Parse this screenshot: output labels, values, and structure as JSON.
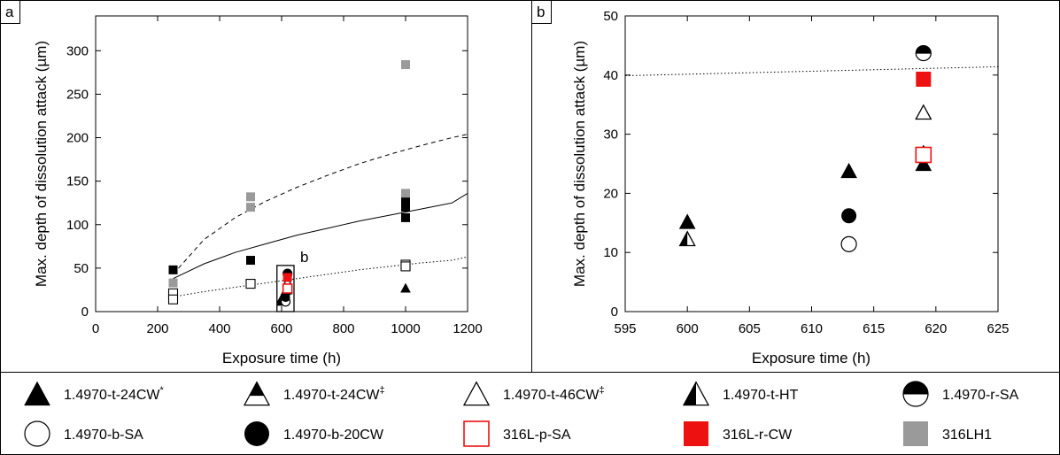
{
  "panels": {
    "a": {
      "letter": "a",
      "inset_label": "b"
    },
    "b": {
      "letter": "b"
    }
  },
  "legend": [
    {
      "label": "1.4970-t-24CW",
      "sup": "*",
      "marker": "triangle-filled"
    },
    {
      "label": "1.4970-t-24CW",
      "sup": "‡",
      "marker": "triangle-top-filled"
    },
    {
      "label": "1.4970-t-46CW",
      "sup": "‡",
      "marker": "triangle-open"
    },
    {
      "label": "1.4970-t-HT",
      "sup": "",
      "marker": "triangle-left-filled"
    },
    {
      "label": "1.4970-r-SA",
      "sup": "",
      "marker": "circle-top-filled"
    },
    {
      "label": "1.4970-b-SA",
      "sup": "",
      "marker": "circle-open"
    },
    {
      "label": "1.4970-b-20CW",
      "sup": "",
      "marker": "circle-filled"
    },
    {
      "label": "316L-p-SA",
      "sup": "",
      "marker": "square-open-red"
    },
    {
      "label": "316L-r-CW",
      "sup": "",
      "marker": "square-filled-red"
    },
    {
      "label": "316LH1",
      "sup": "",
      "marker": "square-filled-gray"
    }
  ],
  "colors": {
    "red": "#ee1111",
    "gray": "#9a9a9a",
    "black": "#000000"
  },
  "chart_data": [
    {
      "type": "scatter",
      "panel": "a",
      "xlabel": "Exposure time (h)",
      "ylabel": "Max. depth of dissolution attack (µm)",
      "xlim": [
        0,
        1200
      ],
      "ylim": [
        0,
        340
      ],
      "xticks": [
        0,
        200,
        400,
        600,
        800,
        1000,
        1200
      ],
      "yticks": [
        0,
        50,
        100,
        150,
        200,
        250,
        300
      ],
      "series": [
        {
          "name": "316LH1",
          "marker": "square-filled-gray",
          "points": [
            [
              250,
              33
            ],
            [
              500,
              132
            ],
            [
              500,
              120
            ],
            [
              1000,
              284
            ],
            [
              1000,
              136
            ],
            [
              1000,
              130
            ]
          ]
        },
        {
          "name": "",
          "marker": "square-filled-black",
          "points": [
            [
              250,
              48
            ],
            [
              500,
              59
            ],
            [
              1000,
              126
            ],
            [
              1000,
              120
            ],
            [
              1000,
              108
            ]
          ]
        },
        {
          "name": "",
          "marker": "square-open-black",
          "points": [
            [
              250,
              21
            ],
            [
              250,
              14
            ],
            [
              500,
              32
            ],
            [
              1000,
              54
            ],
            [
              1000,
              52
            ]
          ]
        },
        {
          "name": "1.4970-t-24CW",
          "marker": "triangle-filled",
          "points": [
            [
              1000,
              27
            ],
            [
              600,
              15
            ],
            [
              613,
              24
            ],
            [
              619,
              25
            ]
          ]
        },
        {
          "name": "1.4970-t-24CW‡",
          "marker": "triangle-top-filled",
          "points": [
            [
              619,
              27
            ]
          ]
        },
        {
          "name": "1.4970-t-46CW‡",
          "marker": "triangle-open",
          "points": [
            [
              619,
              34
            ]
          ]
        },
        {
          "name": "1.4970-t-HT",
          "marker": "triangle-left-filled",
          "points": [
            [
              600,
              12
            ]
          ]
        },
        {
          "name": "1.4970-r-SA",
          "marker": "circle-top-filled",
          "points": [
            [
              619,
              43.7
            ]
          ]
        },
        {
          "name": "1.4970-b-SA",
          "marker": "circle-open",
          "points": [
            [
              613,
              11.4
            ]
          ]
        },
        {
          "name": "1.4970-b-20CW",
          "marker": "circle-filled",
          "points": [
            [
              613,
              16.2
            ]
          ]
        },
        {
          "name": "316L-p-SA",
          "marker": "square-open-red",
          "points": [
            [
              619,
              26.5
            ]
          ]
        },
        {
          "name": "316L-r-CW",
          "marker": "square-filled-red",
          "points": [
            [
              619,
              39.3
            ]
          ]
        }
      ],
      "fits": [
        {
          "style": "dashed",
          "points": [
            [
              250,
              43
            ],
            [
              350,
              83
            ],
            [
              450,
              108
            ],
            [
              550,
              127
            ],
            [
              650,
              143
            ],
            [
              750,
              157
            ],
            [
              850,
              170
            ],
            [
              950,
              181
            ],
            [
              1050,
              191
            ],
            [
              1150,
              200
            ],
            [
              1200,
              204
            ]
          ]
        },
        {
          "style": "solid",
          "points": [
            [
              250,
              38
            ],
            [
              350,
              55
            ],
            [
              450,
              68
            ],
            [
              550,
              78
            ],
            [
              650,
              88
            ],
            [
              750,
              96
            ],
            [
              850,
              104
            ],
            [
              950,
              111
            ],
            [
              1050,
              118
            ],
            [
              1150,
              125
            ],
            [
              1200,
              136
            ]
          ]
        },
        {
          "style": "dotted",
          "points": [
            [
              250,
              17
            ],
            [
              350,
              23
            ],
            [
              450,
              28
            ],
            [
              550,
              33
            ],
            [
              650,
              38
            ],
            [
              750,
              43
            ],
            [
              850,
              48
            ],
            [
              950,
              52
            ],
            [
              1050,
              56
            ],
            [
              1150,
              59
            ],
            [
              1200,
              63
            ]
          ]
        }
      ],
      "zoom_box": {
        "x": [
          585,
          640
        ],
        "y": [
          0,
          50
        ]
      }
    },
    {
      "type": "scatter",
      "panel": "b",
      "xlabel": "Exposure time (h)",
      "ylabel": "Max. depth of dissolution attack (µm)",
      "xlim": [
        595,
        625
      ],
      "ylim": [
        0,
        50
      ],
      "xticks": [
        595,
        600,
        605,
        610,
        615,
        620,
        625
      ],
      "yticks": [
        0,
        10,
        20,
        30,
        40,
        50
      ],
      "series": [
        {
          "name": "1.4970-t-24CW*",
          "marker": "triangle-filled",
          "points": [
            [
              600,
              15.2
            ],
            [
              613,
              23.8
            ],
            [
              619,
              25
            ]
          ]
        },
        {
          "name": "1.4970-t-HT",
          "marker": "triangle-left-filled",
          "points": [
            [
              600,
              12.3
            ]
          ]
        },
        {
          "name": "1.4970-t-24CW‡",
          "marker": "triangle-top-filled",
          "points": [
            [
              619,
              26.8
            ]
          ]
        },
        {
          "name": "1.4970-t-46CW‡",
          "marker": "triangle-open",
          "points": [
            [
              619,
              33.7
            ]
          ]
        },
        {
          "name": "1.4970-r-SA",
          "marker": "circle-top-filled",
          "points": [
            [
              619,
              43.7
            ]
          ]
        },
        {
          "name": "1.4970-b-SA",
          "marker": "circle-open",
          "points": [
            [
              613,
              11.4
            ]
          ]
        },
        {
          "name": "1.4970-b-20CW",
          "marker": "circle-filled",
          "points": [
            [
              613,
              16.2
            ]
          ]
        },
        {
          "name": "316L-p-SA",
          "marker": "square-open-red",
          "points": [
            [
              619,
              26.5
            ]
          ]
        },
        {
          "name": "316L-r-CW",
          "marker": "square-filled-red",
          "points": [
            [
              619,
              39.3
            ]
          ]
        }
      ],
      "fits": [
        {
          "style": "dotted",
          "points": [
            [
              595,
              39.9
            ],
            [
              625,
              41.4
            ]
          ]
        }
      ]
    }
  ]
}
